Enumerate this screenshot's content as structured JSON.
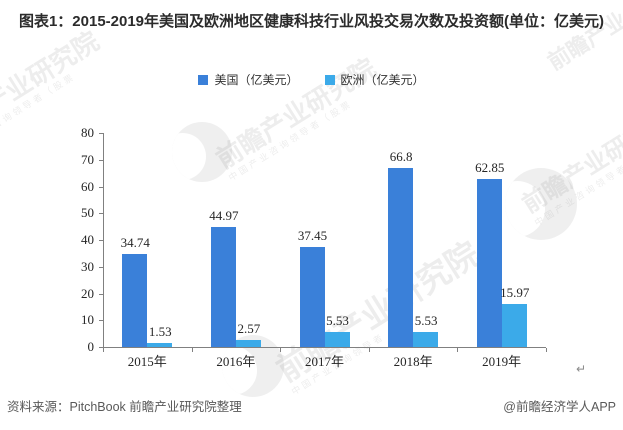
{
  "title": "图表1：2015-2019年美国及欧洲地区健康科技行业风投交易次数及投资额(单位：亿美元)",
  "chart_data": {
    "type": "bar",
    "title": "图表1：2015-2019年美国及欧洲地区健康科技行业风投交易次数及投资额(单位：亿美元)",
    "categories": [
      "2015年",
      "2016年",
      "2017年",
      "2018年",
      "2019年"
    ],
    "series": [
      {
        "name": "美国（亿美元）",
        "color": "#3A80D9",
        "values": [
          34.74,
          44.97,
          37.45,
          66.8,
          62.85
        ]
      },
      {
        "name": "欧洲（亿美元）",
        "color": "#3BAAE9",
        "values": [
          1.53,
          2.57,
          5.53,
          5.53,
          15.97
        ]
      }
    ],
    "ylim": [
      0,
      80
    ],
    "ytick_step": 10,
    "grid": false,
    "legend_position": "top",
    "axis_color": "#808080",
    "label_color": "#262626"
  },
  "footer": {
    "source": "资料来源：PitchBook 前瞻产业研究院整理",
    "credit": "@前瞻经济学人APP",
    "return_glyph": "↵"
  },
  "watermark": {
    "text": "前瞻产业研究院",
    "subtext": "中国产业咨询领导者（股票",
    "short_text": "前瞻产业"
  }
}
